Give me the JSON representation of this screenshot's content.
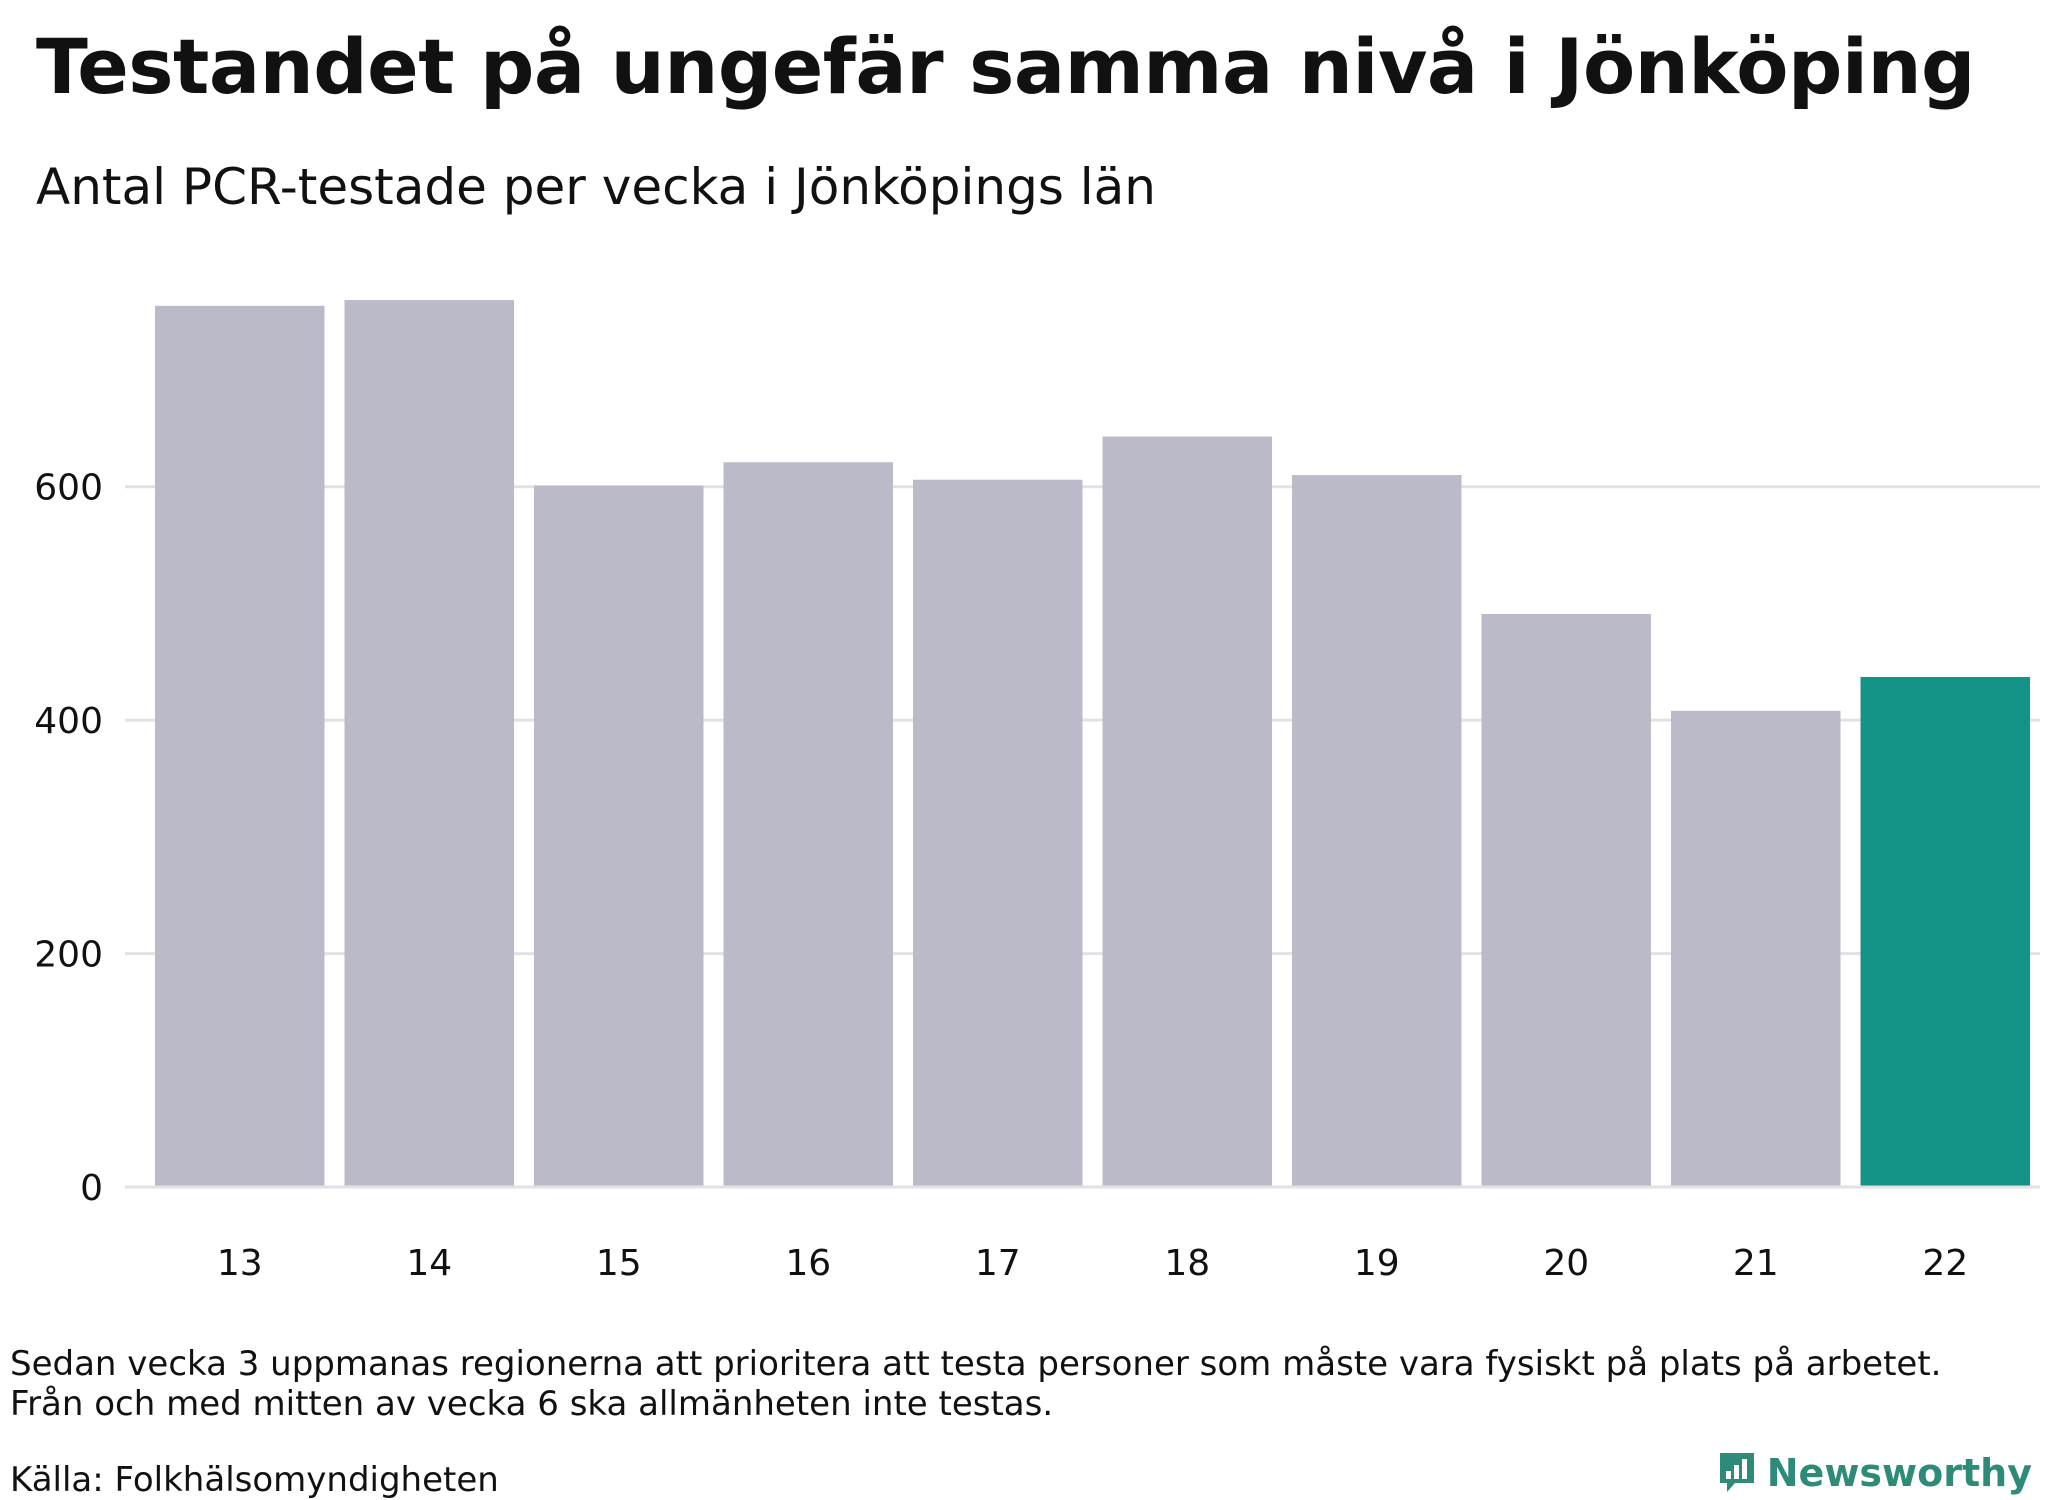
{
  "title": "Testandet på ungefär samma nivå i Jönköping",
  "subtitle": "Antal PCR-testade per vecka i Jönköpings län",
  "colors": {
    "bar": "#bbbac8",
    "highlight": "#149486",
    "grid": "#e2e2e6",
    "text": "#111111",
    "brand": "#2e8b7a"
  },
  "chart_data": {
    "type": "bar",
    "categories": [
      "13",
      "14",
      "15",
      "16",
      "17",
      "18",
      "19",
      "20",
      "21",
      "22"
    ],
    "values": [
      755,
      760,
      601,
      621,
      606,
      643,
      610,
      491,
      408,
      437
    ],
    "highlight_category": "22",
    "yticks": [
      0,
      200,
      400,
      600
    ],
    "ylim": [
      0,
      760
    ],
    "xlabel": "",
    "ylabel": "",
    "grid": true
  },
  "footnote": {
    "line1": "Sedan vecka 3 uppmanas regionerna att prioritera att testa personer som måste vara fysiskt på plats på arbetet.",
    "line2": "Från och med mitten av vecka 6 ska allmänheten inte testas."
  },
  "source": "Källa: Folkhälsomyndigheten",
  "brand": {
    "name": "Newsworthy",
    "icon": "bar-chart-logo-icon"
  }
}
